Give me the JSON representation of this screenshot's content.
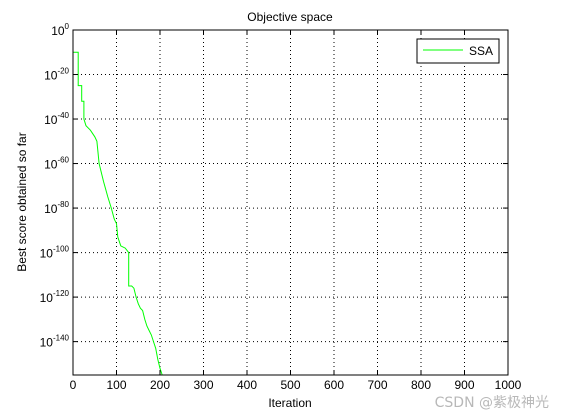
{
  "chart_data": {
    "type": "line",
    "title": "Objective space",
    "xlabel": "Iteration",
    "ylabel": "Best score obtained so far",
    "xlim": [
      0,
      1000
    ],
    "ylim_exponent": [
      -155,
      0
    ],
    "yscale": "log",
    "xticks": [
      "0",
      "100",
      "200",
      "300",
      "400",
      "500",
      "600",
      "700",
      "800",
      "900",
      "1000"
    ],
    "yticks": [
      {
        "base": "10",
        "exp": "0",
        "value": 0
      },
      {
        "base": "10",
        "exp": "-20",
        "value": -20
      },
      {
        "base": "10",
        "exp": "-40",
        "value": -40
      },
      {
        "base": "10",
        "exp": "-60",
        "value": -60
      },
      {
        "base": "10",
        "exp": "-80",
        "value": -80
      },
      {
        "base": "10",
        "exp": "-100",
        "value": -100
      },
      {
        "base": "10",
        "exp": "-120",
        "value": -120
      },
      {
        "base": "10",
        "exp": "-140",
        "value": -140
      }
    ],
    "grid": true,
    "grid_style": "dotted",
    "legend_position": "top-right",
    "series": [
      {
        "name": "SSA",
        "color": "#00ff00",
        "x": [
          0,
          12,
          12,
          20,
          20,
          25,
          25,
          30,
          40,
          50,
          55,
          60,
          70,
          80,
          88,
          95,
          100,
          103,
          110,
          120,
          128,
          128,
          135,
          140,
          145,
          150,
          155,
          160,
          165,
          170,
          175,
          180,
          185,
          190,
          195,
          200,
          205
        ],
        "log10_y": [
          -10,
          -10,
          -25,
          -25,
          -32,
          -32,
          -40,
          -43,
          -45,
          -48,
          -50,
          -60,
          -68,
          -75,
          -80,
          -85,
          -87,
          -93,
          -97,
          -98,
          -100,
          -115,
          -115,
          -116,
          -120,
          -123,
          -125,
          -126,
          -130,
          -133,
          -135,
          -137,
          -140,
          -143,
          -148,
          -152,
          -155
        ]
      }
    ]
  },
  "watermark": "CSDN @紫极神光"
}
